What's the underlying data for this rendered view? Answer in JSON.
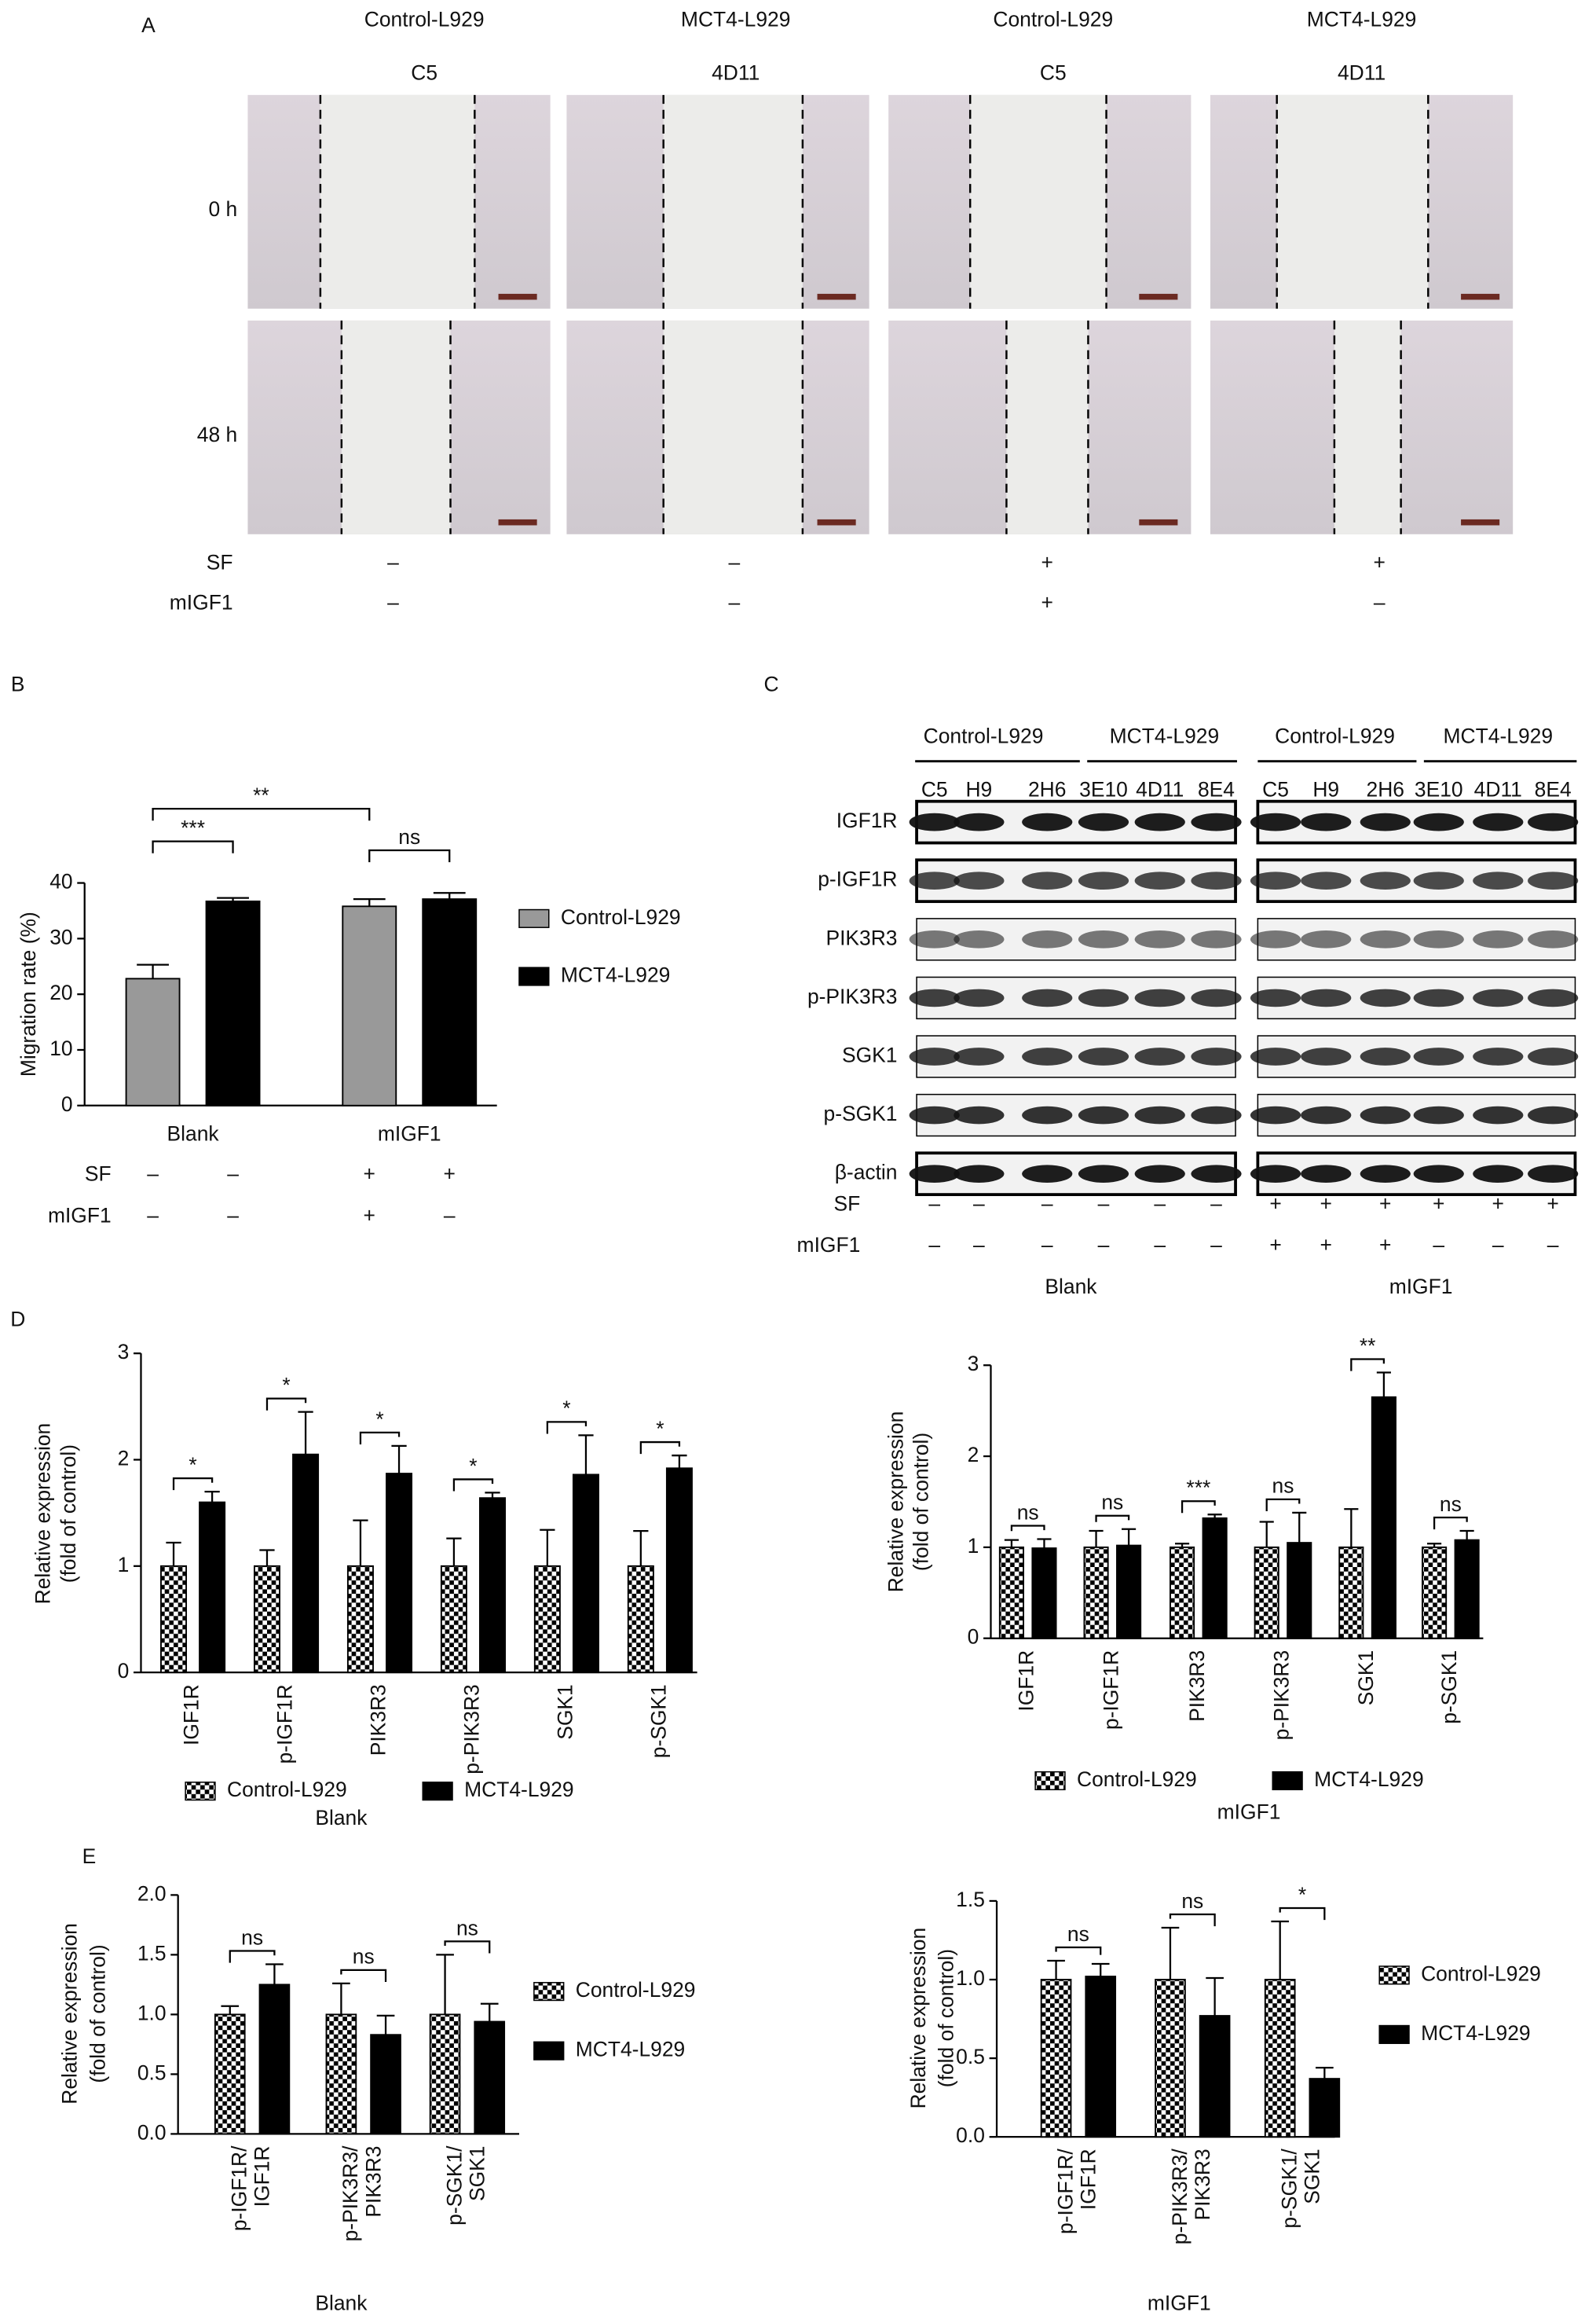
{
  "panel_a": {
    "label": "A",
    "columns": [
      {
        "line": "Control-L929",
        "clone": "C5"
      },
      {
        "line": "MCT4-L929",
        "clone": "4D11"
      },
      {
        "line": "Control-L929",
        "clone": "C5"
      },
      {
        "line": "MCT4-L929",
        "clone": "4D11"
      }
    ],
    "rows": [
      "0 h",
      "48 h"
    ],
    "treatments": [
      {
        "name": "SF",
        "values": [
          "–",
          "–",
          "+",
          "+"
        ]
      },
      {
        "name": "mIGF1",
        "values": [
          "–",
          "–",
          "+",
          "–"
        ]
      }
    ]
  },
  "panel_c": {
    "label": "C",
    "groups": [
      "Control-L929",
      "MCT4-L929",
      "Control-L929",
      "MCT4-L929"
    ],
    "lanes": [
      "C5",
      "H9",
      "2H6",
      "3E10",
      "4D11",
      "8E4",
      "C5",
      "H9",
      "2H6",
      "3E10",
      "4D11",
      "8E4"
    ],
    "proteins": [
      "IGF1R",
      "p-IGF1R",
      "PIK3R3",
      "p-PIK3R3",
      "SGK1",
      "p-SGK1",
      "β-actin"
    ],
    "treatments": [
      {
        "name": "SF",
        "values": [
          "–",
          "–",
          "–",
          "–",
          "–",
          "–",
          "+",
          "+",
          "+",
          "+",
          "+",
          "+"
        ]
      },
      {
        "name": "mIGF1",
        "values": [
          "–",
          "–",
          "–",
          "–",
          "–",
          "–",
          "+",
          "+",
          "+",
          "–",
          "–",
          "–"
        ]
      }
    ],
    "conditions": [
      "Blank",
      "mIGF1"
    ]
  },
  "chart_data": [
    {
      "type": "bar",
      "panel": "B",
      "ylabel": "Migration rate (%)",
      "categories": [
        "Blank",
        "mIGF1"
      ],
      "series": [
        {
          "name": "Control-L929",
          "color": "#999999",
          "values": [
            22.8,
            35.8
          ],
          "errors": [
            2.5,
            1.3
          ]
        },
        {
          "name": "MCT4-L929",
          "color": "#000000",
          "values": [
            36.7,
            37.1
          ],
          "errors": [
            0.6,
            1.1
          ]
        }
      ],
      "ylim": [
        0,
        40
      ],
      "yticks": [
        0,
        10,
        20,
        30,
        40
      ],
      "legend": "right",
      "annotations": [
        "***",
        "**",
        "ns"
      ],
      "treatments": [
        {
          "name": "SF",
          "values": [
            "–",
            "–",
            "+",
            "+"
          ]
        },
        {
          "name": "mIGF1",
          "values": [
            "–",
            "–",
            "+",
            "–"
          ]
        }
      ]
    },
    {
      "type": "bar",
      "panel": "D",
      "ylabel": [
        "Relative expression",
        "(fold of control)"
      ],
      "xlabel": "Blank",
      "categories": [
        "IGF1R",
        "p-IGF1R",
        "PIK3R3",
        "p-PIK3R3",
        "SGK1",
        "p-SGK1"
      ],
      "series": [
        {
          "name": "Control-L929",
          "color": "#000000",
          "hatch": "checker",
          "values": [
            1,
            1,
            1,
            1,
            1,
            1
          ],
          "errors": [
            0.22,
            0.15,
            0.43,
            0.26,
            0.34,
            0.33
          ]
        },
        {
          "name": "MCT4-L929",
          "color": "#000000",
          "values": [
            1.6,
            2.05,
            1.87,
            1.64,
            1.86,
            1.92
          ],
          "errors": [
            0.1,
            0.4,
            0.26,
            0.05,
            0.37,
            0.12
          ]
        }
      ],
      "ylim": [
        0,
        3
      ],
      "yticks": [
        0,
        1,
        2,
        3
      ],
      "legend": "bottom",
      "significance": [
        "*",
        "*",
        "*",
        "*",
        "*",
        "*"
      ]
    },
    {
      "type": "bar",
      "ylabel": [
        "Relative expression",
        "(fold of control)"
      ],
      "xlabel": "mIGF1",
      "categories": [
        "IGF1R",
        "p-IGF1R",
        "PIK3R3",
        "p-PIK3R3",
        "SGK1",
        "p-SGK1"
      ],
      "series": [
        {
          "name": "Control-L929",
          "color": "#000000",
          "hatch": "checker",
          "values": [
            1,
            1,
            1,
            1,
            1,
            1
          ],
          "errors": [
            0.08,
            0.18,
            0.04,
            0.28,
            0.42,
            0.04
          ]
        },
        {
          "name": "MCT4-L929",
          "color": "#000000",
          "values": [
            0.99,
            1.02,
            1.32,
            1.05,
            2.65,
            1.08
          ],
          "errors": [
            0.1,
            0.18,
            0.04,
            0.33,
            0.27,
            0.1
          ]
        }
      ],
      "ylim": [
        0,
        3
      ],
      "yticks": [
        0,
        1,
        2,
        3
      ],
      "legend": "bottom",
      "significance": [
        "ns",
        "ns",
        "***",
        "ns",
        "**",
        "ns"
      ]
    },
    {
      "type": "bar",
      "panel": "E",
      "ylabel": [
        "Relative expression",
        "(fold of control)"
      ],
      "xlabel": "Blank",
      "categories": [
        "p-IGF1R/\nIGF1R",
        "p-PIK3R3/\nPIK3R3",
        "p-SGK1/\nSGK1"
      ],
      "series": [
        {
          "name": "Control-L929",
          "color": "#000000",
          "hatch": "checker",
          "values": [
            1,
            1,
            1
          ],
          "errors": [
            0.07,
            0.26,
            0.5
          ]
        },
        {
          "name": "MCT4-L929",
          "color": "#000000",
          "values": [
            1.25,
            0.83,
            0.94
          ],
          "errors": [
            0.17,
            0.16,
            0.15
          ]
        }
      ],
      "ylim": [
        0,
        2
      ],
      "yticks": [
        {
          "value": 0,
          "label": "0.0"
        },
        0.5,
        {
          "value": 1,
          "label": "1.0"
        },
        1.5,
        {
          "value": 2,
          "label": "2.0"
        }
      ],
      "legend": "right",
      "significance": [
        "ns",
        "ns",
        "ns"
      ]
    },
    {
      "type": "bar",
      "ylabel": [
        "Relative expression",
        "(fold of control)"
      ],
      "xlabel": "mIGF1",
      "categories": [
        "p-IGF1R/\nIGF1R",
        "p-PIK3R3/\nPIK3R3",
        "p-SGK1/\nSGK1"
      ],
      "series": [
        {
          "name": "Control-L929",
          "color": "#000000",
          "hatch": "checker",
          "values": [
            1,
            1,
            1
          ],
          "errors": [
            0.12,
            0.33,
            0.37
          ]
        },
        {
          "name": "MCT4-L929",
          "color": "#000000",
          "values": [
            1.02,
            0.77,
            0.37
          ],
          "errors": [
            0.08,
            0.24,
            0.07
          ]
        }
      ],
      "ylim": [
        0,
        1.5
      ],
      "yticks": [
        {
          "value": 0,
          "label": "0.0"
        },
        0.5,
        {
          "value": 1,
          "label": "1.0"
        },
        1.5
      ],
      "legend": "right",
      "significance": [
        "ns",
        "ns",
        "*"
      ]
    }
  ]
}
